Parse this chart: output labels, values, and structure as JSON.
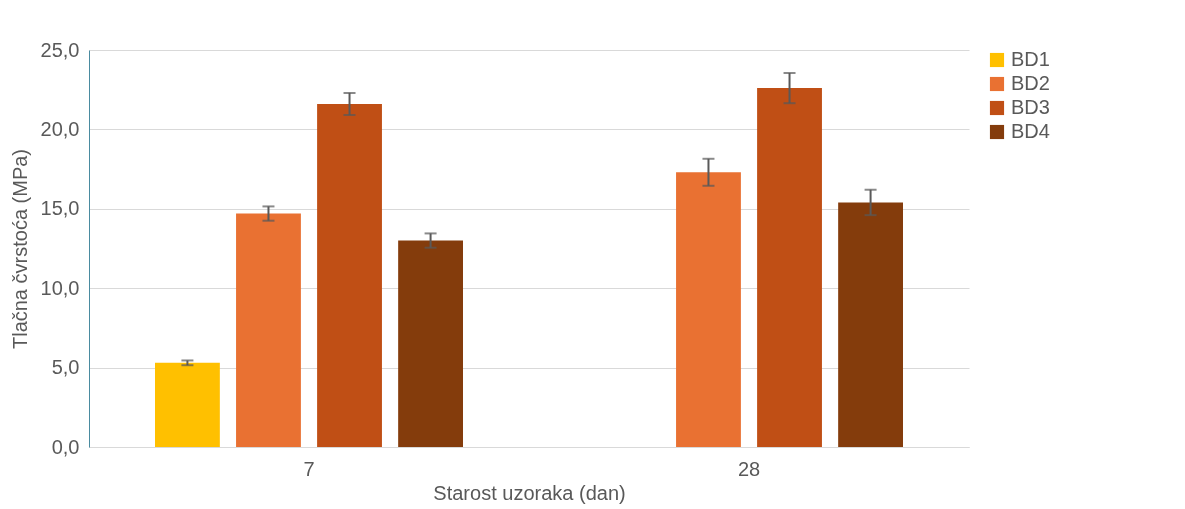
{
  "chart_data": {
    "type": "bar",
    "xlabel": "Starost uzoraka (dan)",
    "ylabel": "Tlačna čvrstoća (MPa)",
    "categories": [
      "7",
      "28"
    ],
    "series": [
      {
        "name": "BD1",
        "color": "#ffc000",
        "values": [
          5.3,
          null
        ],
        "errors": [
          0.15,
          null
        ]
      },
      {
        "name": "BD2",
        "color": "#e97132",
        "values": [
          14.7,
          17.3
        ],
        "errors": [
          0.45,
          0.85
        ]
      },
      {
        "name": "BD3",
        "color": "#c04f15",
        "values": [
          21.6,
          22.6
        ],
        "errors": [
          0.7,
          0.95
        ]
      },
      {
        "name": "BD4",
        "color": "#843c0c",
        "values": [
          13.0,
          15.4
        ],
        "errors": [
          0.45,
          0.8
        ]
      }
    ],
    "ylim": [
      0,
      25
    ],
    "yticks": [
      {
        "value": 0,
        "label": "0,0"
      },
      {
        "value": 5,
        "label": "5,0"
      },
      {
        "value": 10,
        "label": "10,0"
      },
      {
        "value": 15,
        "label": "15,0"
      },
      {
        "value": 20,
        "label": "20,0"
      },
      {
        "value": 25,
        "label": "25,0"
      }
    ],
    "grid": "y",
    "legend": "right"
  }
}
